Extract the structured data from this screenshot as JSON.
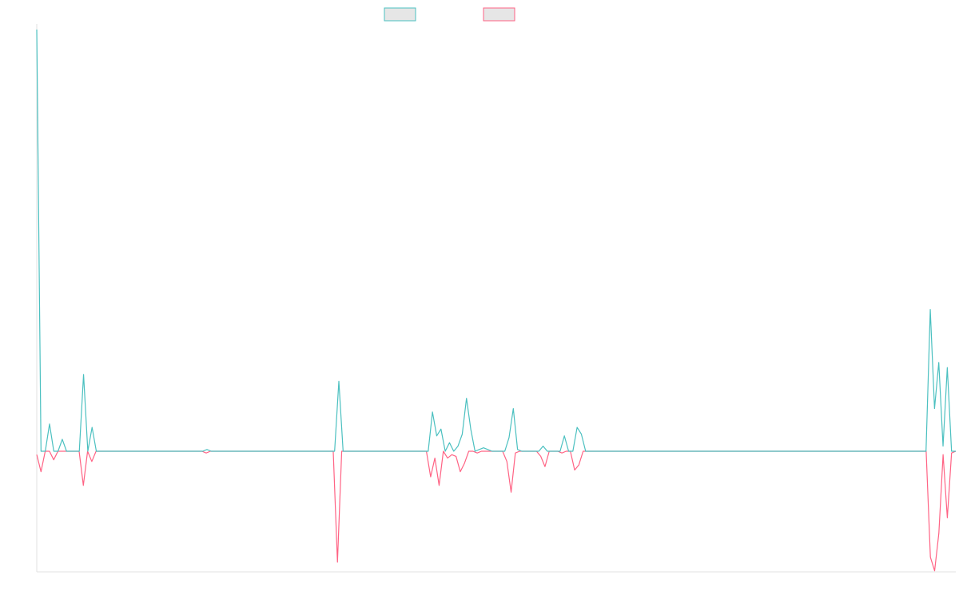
{
  "chart_data": {
    "type": "line",
    "title": "",
    "xlabel": "",
    "ylabel": "",
    "grid": false,
    "legend_position": "top-center",
    "ylim": [
      -1.0,
      2.5
    ],
    "series": [
      {
        "color": "#4bc0c0",
        "values": [
          2.47,
          0.0,
          0.0,
          0.16,
          0.0,
          0.0,
          0.07,
          0.0,
          0.0,
          0.0,
          0.0,
          0.45,
          0.0,
          0.14,
          0.0,
          0.0,
          0.0,
          0.0,
          0.0,
          0.0,
          0.0,
          0.0,
          0.0,
          0.0,
          0.0,
          0.0,
          0.0,
          0.0,
          0.0,
          0.0,
          0.0,
          0.0,
          0.0,
          0.0,
          0.0,
          0.0,
          0.0,
          0.0,
          0.0,
          0.0,
          0.01,
          0.0,
          0.0,
          0.0,
          0.0,
          0.0,
          0.0,
          0.0,
          0.0,
          0.0,
          0.0,
          0.0,
          0.0,
          0.0,
          0.0,
          0.0,
          0.0,
          0.0,
          0.0,
          0.0,
          0.0,
          0.0,
          0.0,
          0.0,
          0.0,
          0.0,
          0.0,
          0.0,
          0.0,
          0.0,
          0.0,
          0.41,
          0.0,
          0.0,
          0.0,
          0.0,
          0.0,
          0.0,
          0.0,
          0.0,
          0.0,
          0.0,
          0.0,
          0.0,
          0.0,
          0.0,
          0.0,
          0.0,
          0.0,
          0.0,
          0.0,
          0.0,
          0.0,
          0.23,
          0.09,
          0.13,
          0.0,
          0.05,
          0.0,
          0.03,
          0.1,
          0.31,
          0.13,
          0.0,
          0.01,
          0.02,
          0.01,
          0.0,
          0.0,
          0.0,
          0.0,
          0.08,
          0.25,
          0.01,
          0.0,
          0.0,
          0.0,
          0.0,
          0.0,
          0.03,
          0.0,
          0.0,
          0.0,
          0.0,
          0.09,
          0.0,
          0.0,
          0.14,
          0.1,
          0.0,
          0.0,
          0.0,
          0.0,
          0.0,
          0.0,
          0.0,
          0.0,
          0.0,
          0.0,
          0.0,
          0.0,
          0.0,
          0.0,
          0.0,
          0.0,
          0.0,
          0.0,
          0.0,
          0.0,
          0.0,
          0.0,
          0.0,
          0.0,
          0.0,
          0.0,
          0.0,
          0.0,
          0.0,
          0.0,
          0.0,
          0.0,
          0.0,
          0.0,
          0.0,
          0.0,
          0.0,
          0.0,
          0.0,
          0.0,
          0.0,
          0.0,
          0.0,
          0.0,
          0.0,
          0.0,
          0.0,
          0.0,
          0.0,
          0.0,
          0.0,
          0.0,
          0.0,
          0.0,
          0.0,
          0.0,
          0.0,
          0.0,
          0.0,
          0.0,
          0.0,
          0.0,
          0.0,
          0.0,
          0.0,
          0.0,
          0.0,
          0.0,
          0.0,
          0.0,
          0.0,
          0.0,
          0.0,
          0.0,
          0.0,
          0.0,
          0.0,
          0.0,
          0.0,
          0.0,
          0.0,
          0.83,
          0.25,
          0.52,
          0.03,
          0.49,
          0.0,
          0.0
        ]
      },
      {
        "color": "#ff6384",
        "values": [
          -0.02,
          -0.12,
          0.0,
          0.0,
          -0.05,
          0.0,
          0.0,
          0.0,
          0.0,
          0.0,
          0.0,
          -0.2,
          0.0,
          -0.06,
          0.0,
          0.0,
          0.0,
          0.0,
          0.0,
          0.0,
          0.0,
          0.0,
          0.0,
          0.0,
          0.0,
          0.0,
          0.0,
          0.0,
          0.0,
          0.0,
          0.0,
          0.0,
          0.0,
          0.0,
          0.0,
          0.0,
          0.0,
          0.0,
          0.0,
          0.0,
          -0.01,
          0.0,
          0.0,
          0.0,
          0.0,
          0.0,
          0.0,
          0.0,
          0.0,
          0.0,
          0.0,
          0.0,
          0.0,
          0.0,
          0.0,
          0.0,
          0.0,
          0.0,
          0.0,
          0.0,
          0.0,
          0.0,
          0.0,
          0.0,
          0.0,
          0.0,
          0.0,
          0.0,
          0.0,
          0.0,
          0.0,
          -0.65,
          0.0,
          0.0,
          0.0,
          0.0,
          0.0,
          0.0,
          0.0,
          0.0,
          0.0,
          0.0,
          0.0,
          0.0,
          0.0,
          0.0,
          0.0,
          0.0,
          0.0,
          0.0,
          0.0,
          0.0,
          0.0,
          -0.15,
          -0.04,
          -0.2,
          0.0,
          -0.04,
          -0.02,
          -0.03,
          -0.12,
          -0.07,
          0.0,
          0.0,
          -0.01,
          0.0,
          0.0,
          0.0,
          0.0,
          0.0,
          0.0,
          -0.06,
          -0.24,
          -0.01,
          0.0,
          0.0,
          0.0,
          0.0,
          0.0,
          -0.03,
          -0.09,
          0.0,
          0.0,
          0.0,
          -0.01,
          0.0,
          0.0,
          -0.11,
          -0.08,
          0.0,
          0.0,
          0.0,
          0.0,
          0.0,
          0.0,
          0.0,
          0.0,
          0.0,
          0.0,
          0.0,
          0.0,
          0.0,
          0.0,
          0.0,
          0.0,
          0.0,
          0.0,
          0.0,
          0.0,
          0.0,
          0.0,
          0.0,
          0.0,
          0.0,
          0.0,
          0.0,
          0.0,
          0.0,
          0.0,
          0.0,
          0.0,
          0.0,
          0.0,
          0.0,
          0.0,
          0.0,
          0.0,
          0.0,
          0.0,
          0.0,
          0.0,
          0.0,
          0.0,
          0.0,
          0.0,
          0.0,
          0.0,
          0.0,
          0.0,
          0.0,
          0.0,
          0.0,
          0.0,
          0.0,
          0.0,
          0.0,
          0.0,
          0.0,
          0.0,
          0.0,
          0.0,
          0.0,
          0.0,
          0.0,
          0.0,
          0.0,
          0.0,
          0.0,
          0.0,
          0.0,
          0.0,
          0.0,
          0.0,
          0.0,
          0.0,
          0.0,
          0.0,
          0.0,
          0.0,
          0.0,
          0.0,
          -0.62,
          -0.7,
          -0.48,
          -0.02,
          -0.39,
          -0.01,
          0.0
        ]
      }
    ]
  }
}
